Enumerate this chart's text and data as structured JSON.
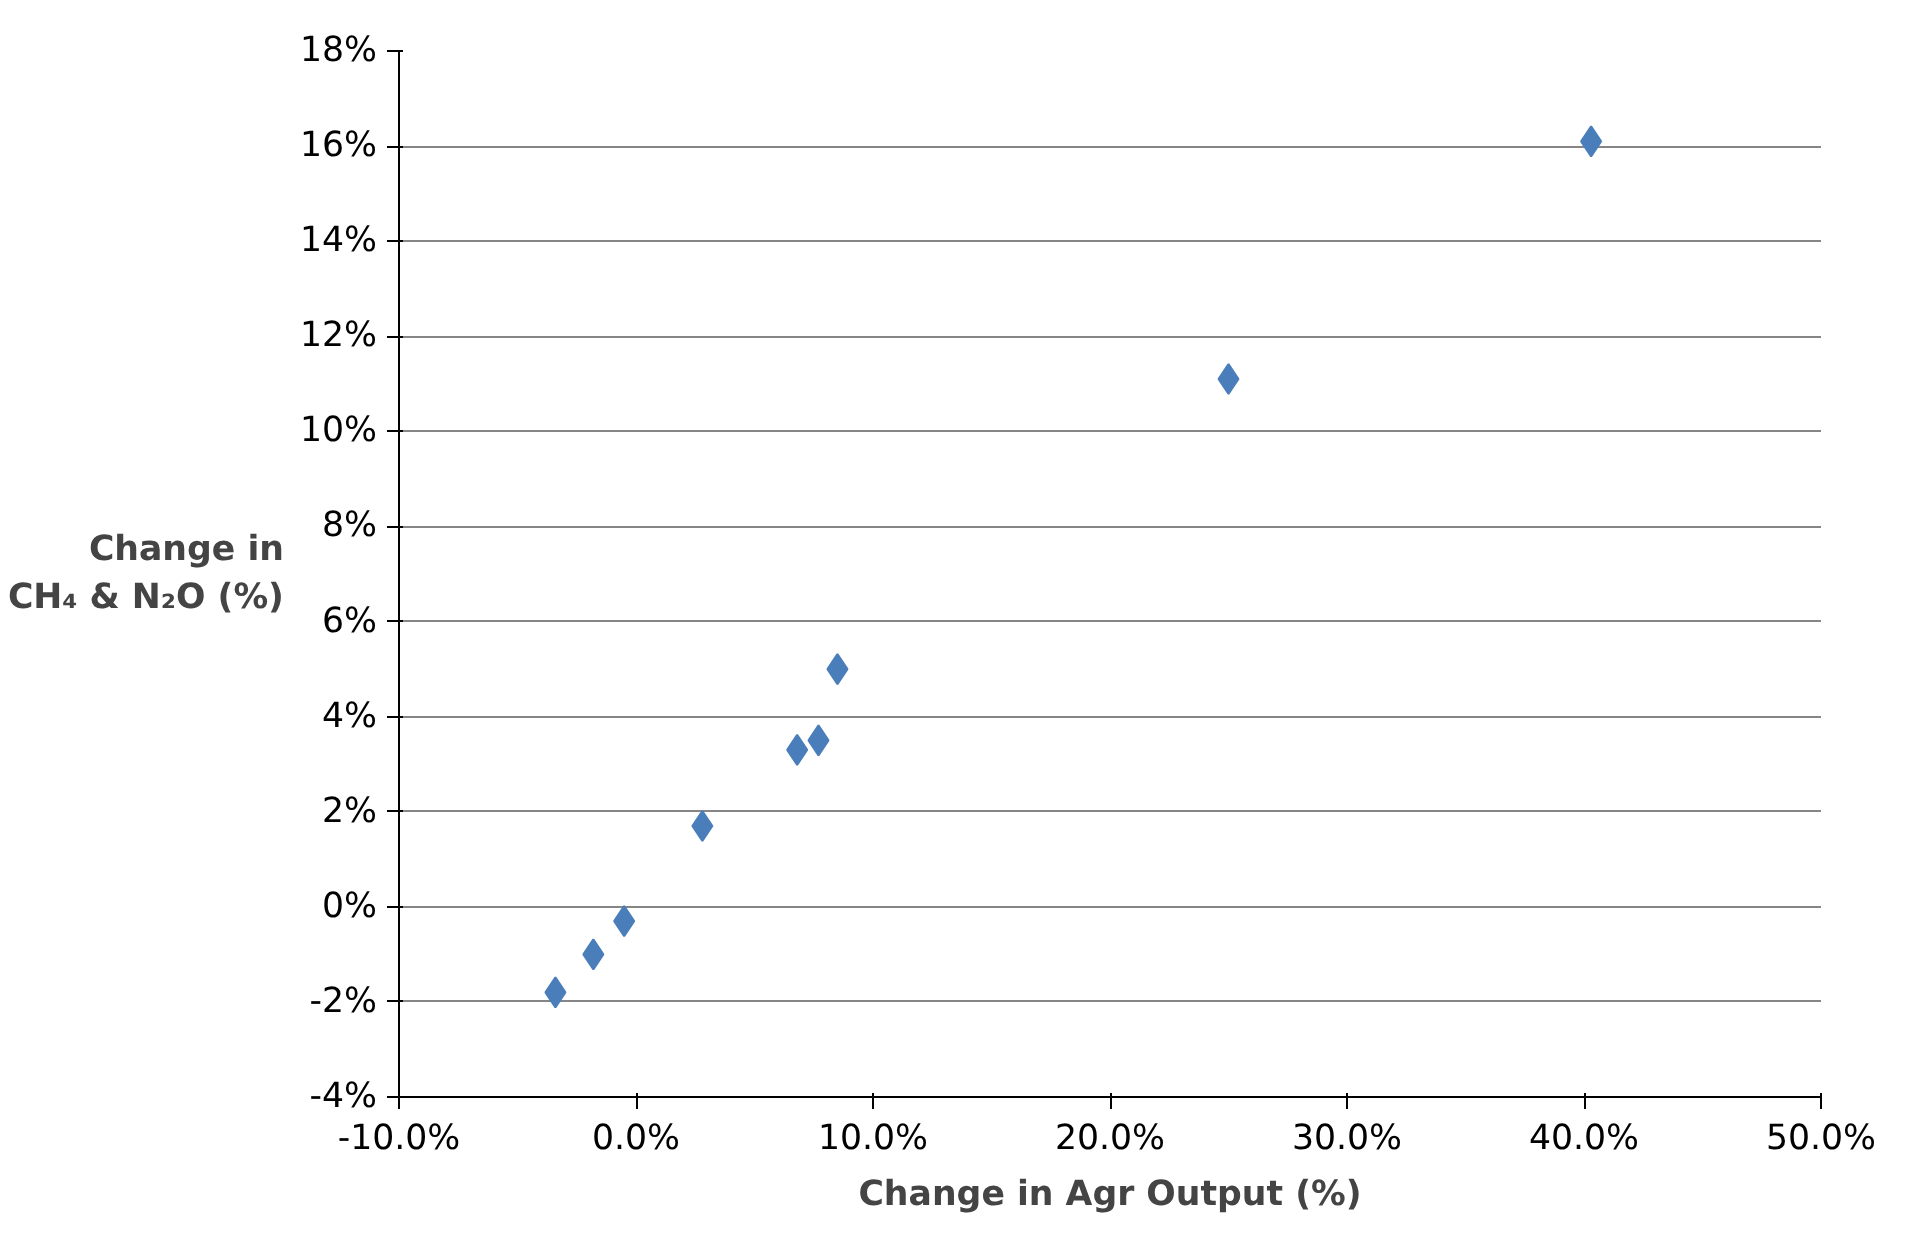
{
  "chart_data": {
    "type": "scatter",
    "xlabel": "Change in Agr Output (%)",
    "ylabel": "Change in\nCH₄ & N₂O (%)",
    "x": [
      -3.4,
      -1.8,
      -0.5,
      2.8,
      6.8,
      7.7,
      8.5,
      25.0,
      40.3
    ],
    "series": [
      {
        "color": "#4a7ebb",
        "values": [
          -1.8,
          -1.0,
          -0.3,
          1.7,
          3.3,
          3.5,
          5.0,
          11.1,
          16.1
        ]
      }
    ],
    "xlim": [
      -10,
      50
    ],
    "ylim": [
      -4,
      18
    ],
    "xticks": [
      {
        "value": -10,
        "label": "-10.0%"
      },
      {
        "value": 0,
        "label": "0.0%"
      },
      {
        "value": 10,
        "label": "10.0%"
      },
      {
        "value": 20,
        "label": "20.0%"
      },
      {
        "value": 30,
        "label": "30.0%"
      },
      {
        "value": 40,
        "label": "40.0%"
      },
      {
        "value": 50,
        "label": "50.0%"
      }
    ],
    "yticks": [
      {
        "value": -4,
        "label": "-4%"
      },
      {
        "value": -2,
        "label": "-2%"
      },
      {
        "value": 0,
        "label": "0%"
      },
      {
        "value": 2,
        "label": "2%"
      },
      {
        "value": 4,
        "label": "4%"
      },
      {
        "value": 6,
        "label": "6%"
      },
      {
        "value": 8,
        "label": "8%"
      },
      {
        "value": 10,
        "label": "10%"
      },
      {
        "value": 12,
        "label": "12%"
      },
      {
        "value": 14,
        "label": "14%"
      },
      {
        "value": 16,
        "label": "16%"
      },
      {
        "value": 18,
        "label": "18%"
      }
    ],
    "grid": "y",
    "marker": "diamond"
  }
}
